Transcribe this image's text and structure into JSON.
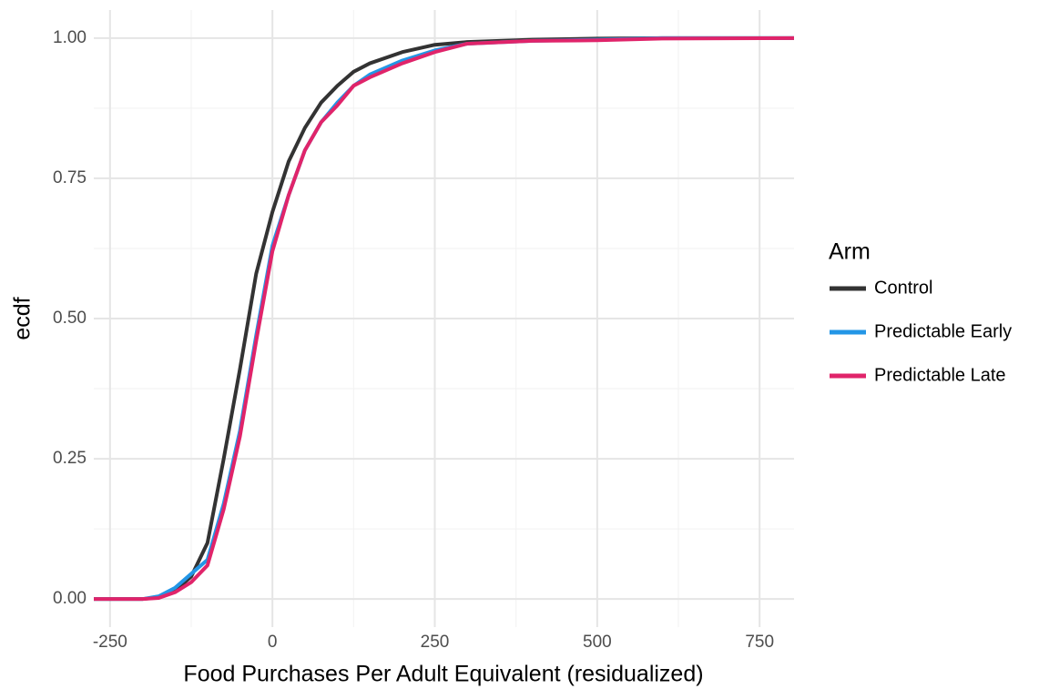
{
  "chart_data": {
    "type": "line",
    "x_label": "Food Purchases Per Adult Equivalent (residualized)",
    "y_label": "ecdf",
    "legend_title": "Arm",
    "legend_position": "right",
    "grid": true,
    "xlim": [
      -275,
      803
    ],
    "ylim": [
      -0.05,
      1.05
    ],
    "xticks": [
      -250,
      0,
      250,
      500,
      750
    ],
    "xminor": [
      -125,
      125,
      375,
      625
    ],
    "yticks": [
      {
        "value": 0,
        "label": "0.00"
      },
      {
        "value": 0.25,
        "label": "0.25"
      },
      {
        "value": 0.5,
        "label": "0.50"
      },
      {
        "value": 0.75,
        "label": "0.75"
      },
      {
        "value": 1,
        "label": "1.00"
      }
    ],
    "yminor": [
      0.125,
      0.375,
      0.625,
      0.875
    ],
    "x": [
      -275,
      -200,
      -175,
      -150,
      -125,
      -100,
      -75,
      -50,
      -25,
      0,
      25,
      50,
      75,
      100,
      125,
      150,
      200,
      250,
      300,
      400,
      500,
      600,
      803
    ],
    "series": [
      {
        "name": "Control",
        "color": "#333333",
        "values": [
          0,
          0,
          0.003,
          0.015,
          0.04,
          0.1,
          0.25,
          0.41,
          0.58,
          0.69,
          0.78,
          0.84,
          0.885,
          0.915,
          0.94,
          0.955,
          0.975,
          0.988,
          0.993,
          0.997,
          0.999,
          1,
          1
        ]
      },
      {
        "name": "Predictable Early",
        "color": "#2396e6",
        "values": [
          0,
          0,
          0.005,
          0.02,
          0.045,
          0.07,
          0.17,
          0.3,
          0.47,
          0.63,
          0.72,
          0.8,
          0.85,
          0.885,
          0.915,
          0.935,
          0.96,
          0.978,
          0.99,
          0.995,
          0.997,
          1,
          1
        ]
      },
      {
        "name": "Predictable Late",
        "color": "#e0246a",
        "values": [
          0,
          0,
          0.002,
          0.012,
          0.03,
          0.06,
          0.16,
          0.29,
          0.46,
          0.62,
          0.72,
          0.8,
          0.85,
          0.88,
          0.915,
          0.93,
          0.955,
          0.975,
          0.99,
          0.995,
          0.996,
          0.999,
          1
        ]
      }
    ]
  }
}
